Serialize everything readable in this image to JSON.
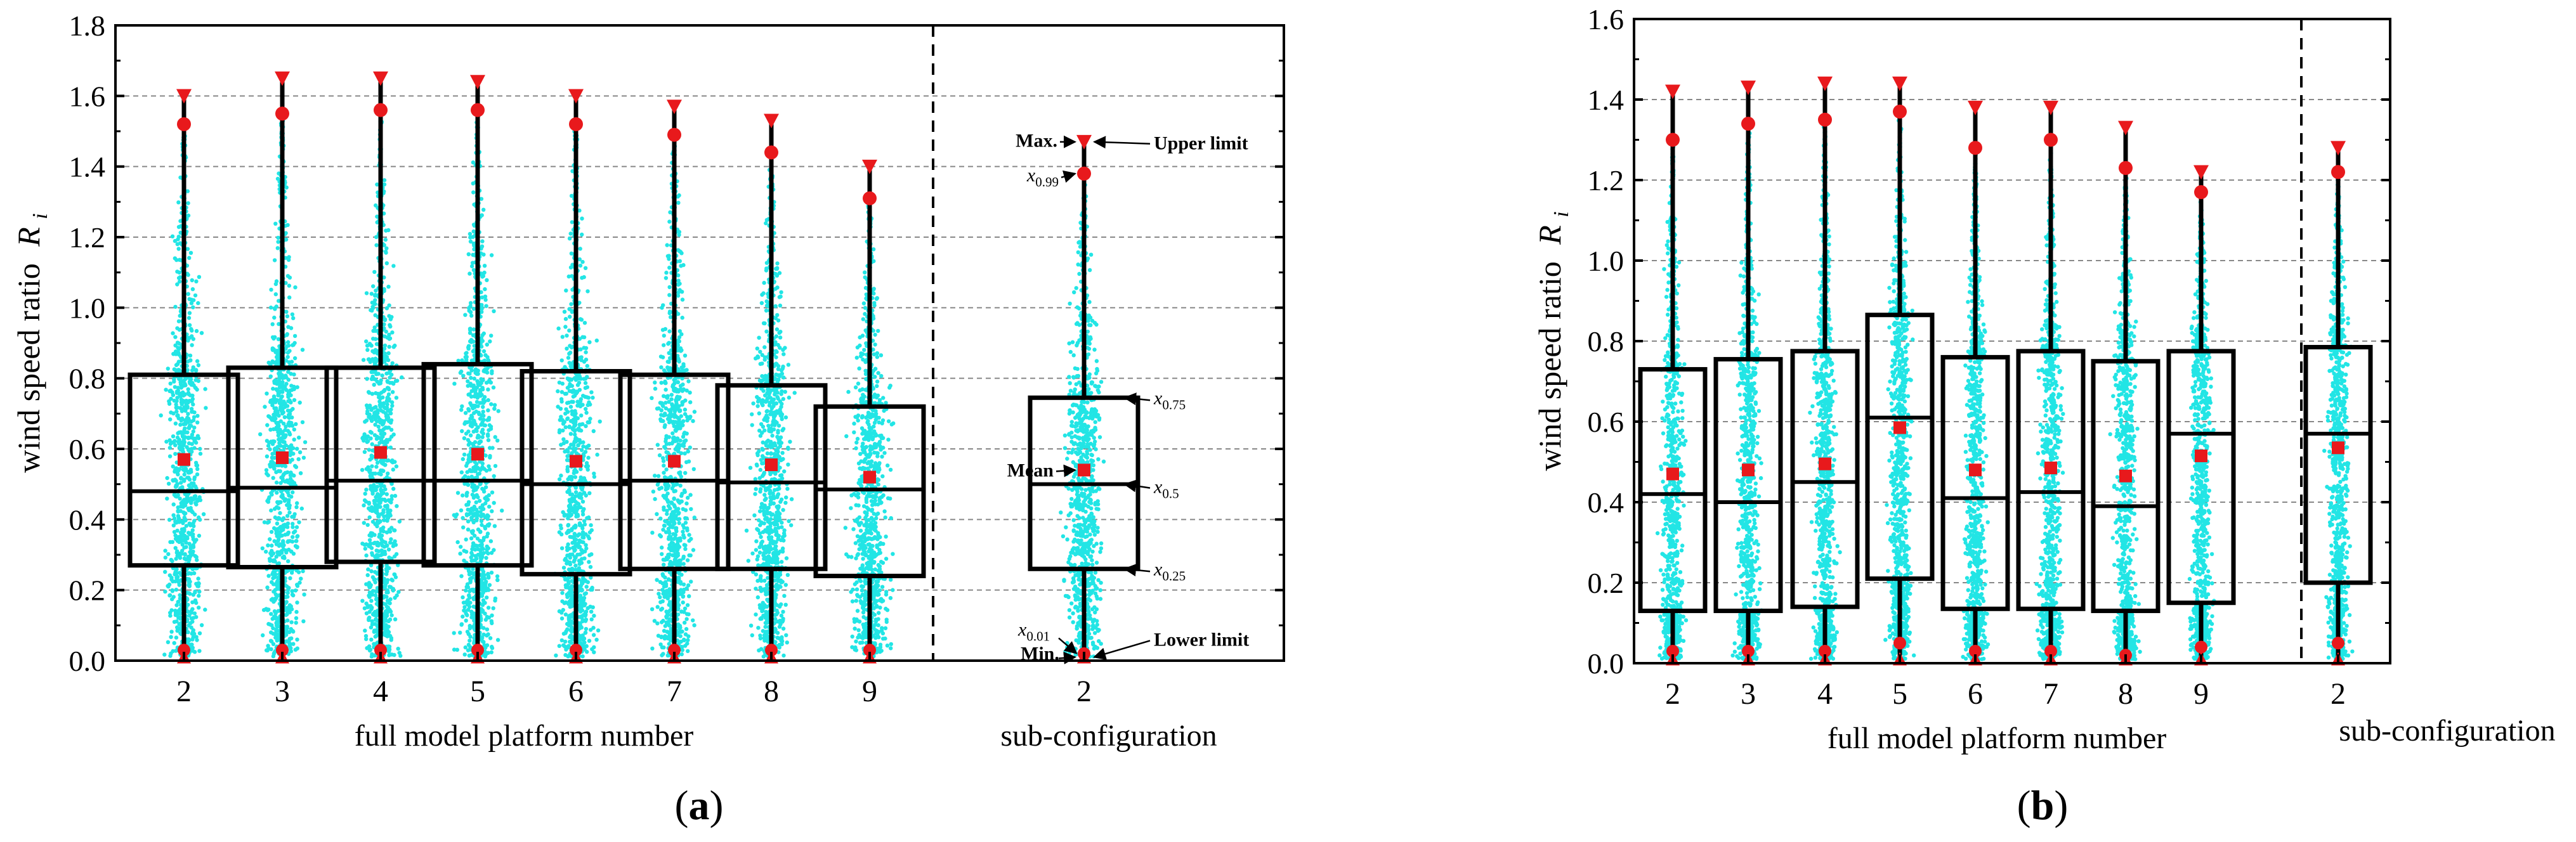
{
  "chart_data": [
    {
      "panel_label": "(a)",
      "panel_letter": "a",
      "type": "box",
      "ylabel": "wind speed ratio",
      "ylabel_symbol": "R",
      "ylabel_subscript": "i",
      "xlabel": "full model platform number",
      "xlabel_sub": "sub-configuration",
      "ylim": [
        0,
        1.8
      ],
      "yticks": [
        "0.0",
        "0.2",
        "0.4",
        "0.6",
        "0.8",
        "1.0",
        "1.2",
        "1.4",
        "1.6",
        "1.8"
      ],
      "grid": true,
      "boxes": [
        {
          "label": "2",
          "group": "full",
          "q1": 0.27,
          "median": 0.48,
          "q3": 0.81,
          "mean": 0.57,
          "p01": 0.03,
          "p99": 1.52,
          "min": 0.01,
          "max": 1.6
        },
        {
          "label": "3",
          "group": "full",
          "q1": 0.265,
          "median": 0.49,
          "q3": 0.83,
          "mean": 0.575,
          "p01": 0.03,
          "p99": 1.55,
          "min": 0.01,
          "max": 1.65
        },
        {
          "label": "4",
          "group": "full",
          "q1": 0.28,
          "median": 0.51,
          "q3": 0.83,
          "mean": 0.59,
          "p01": 0.03,
          "p99": 1.56,
          "min": 0.01,
          "max": 1.65
        },
        {
          "label": "5",
          "group": "full",
          "q1": 0.27,
          "median": 0.51,
          "q3": 0.84,
          "mean": 0.585,
          "p01": 0.03,
          "p99": 1.56,
          "min": 0.01,
          "max": 1.64
        },
        {
          "label": "6",
          "group": "full",
          "q1": 0.245,
          "median": 0.5,
          "q3": 0.82,
          "mean": 0.565,
          "p01": 0.03,
          "p99": 1.52,
          "min": 0.01,
          "max": 1.6
        },
        {
          "label": "7",
          "group": "full",
          "q1": 0.26,
          "median": 0.51,
          "q3": 0.81,
          "mean": 0.565,
          "p01": 0.03,
          "p99": 1.49,
          "min": 0.01,
          "max": 1.57
        },
        {
          "label": "8",
          "group": "full",
          "q1": 0.26,
          "median": 0.505,
          "q3": 0.78,
          "mean": 0.555,
          "p01": 0.03,
          "p99": 1.44,
          "min": 0.01,
          "max": 1.53
        },
        {
          "label": "9",
          "group": "full",
          "q1": 0.24,
          "median": 0.485,
          "q3": 0.72,
          "mean": 0.52,
          "p01": 0.03,
          "p99": 1.31,
          "min": 0.01,
          "max": 1.4
        },
        {
          "label": "2",
          "group": "sub",
          "q1": 0.26,
          "median": 0.5,
          "q3": 0.745,
          "mean": 0.54,
          "p01": 0.02,
          "p99": 1.38,
          "min": 0.01,
          "max": 1.47
        }
      ],
      "legend_annotations": {
        "max": "Max.",
        "upper": "Upper limit",
        "p99": "x0.99",
        "p75": "x0.75",
        "mean": "Mean",
        "median": "x0.5",
        "p25": "x0.25",
        "p01": "x0.01",
        "min": "Min.",
        "lower": "Lower limit"
      }
    },
    {
      "panel_label": "(b)",
      "panel_letter": "b",
      "type": "box",
      "ylabel": "wind speed ratio",
      "ylabel_symbol": "R",
      "ylabel_subscript": "i",
      "xlabel": "full model platform number",
      "xlabel_sub": "sub-configuration",
      "ylim": [
        0,
        1.6
      ],
      "yticks": [
        "0.0",
        "0.2",
        "0.4",
        "0.6",
        "0.8",
        "1.0",
        "1.2",
        "1.4",
        "1.6"
      ],
      "grid": true,
      "boxes": [
        {
          "label": "2",
          "group": "full",
          "q1": 0.13,
          "median": 0.42,
          "q3": 0.73,
          "mean": 0.47,
          "p01": 0.03,
          "p99": 1.3,
          "min": 0.01,
          "max": 1.42
        },
        {
          "label": "3",
          "group": "full",
          "q1": 0.13,
          "median": 0.4,
          "q3": 0.755,
          "mean": 0.48,
          "p01": 0.03,
          "p99": 1.34,
          "min": 0.01,
          "max": 1.43
        },
        {
          "label": "4",
          "group": "full",
          "q1": 0.14,
          "median": 0.45,
          "q3": 0.775,
          "mean": 0.495,
          "p01": 0.03,
          "p99": 1.35,
          "min": 0.01,
          "max": 1.44
        },
        {
          "label": "5",
          "group": "full",
          "q1": 0.21,
          "median": 0.61,
          "q3": 0.865,
          "mean": 0.585,
          "p01": 0.05,
          "p99": 1.37,
          "min": 0.01,
          "max": 1.44
        },
        {
          "label": "6",
          "group": "full",
          "q1": 0.135,
          "median": 0.41,
          "q3": 0.76,
          "mean": 0.48,
          "p01": 0.03,
          "p99": 1.28,
          "min": 0.01,
          "max": 1.38
        },
        {
          "label": "7",
          "group": "full",
          "q1": 0.135,
          "median": 0.425,
          "q3": 0.775,
          "mean": 0.485,
          "p01": 0.03,
          "p99": 1.3,
          "min": 0.01,
          "max": 1.38
        },
        {
          "label": "8",
          "group": "full",
          "q1": 0.13,
          "median": 0.39,
          "q3": 0.75,
          "mean": 0.465,
          "p01": 0.02,
          "p99": 1.23,
          "min": 0.01,
          "max": 1.33
        },
        {
          "label": "9",
          "group": "full",
          "q1": 0.15,
          "median": 0.57,
          "q3": 0.775,
          "mean": 0.515,
          "p01": 0.04,
          "p99": 1.17,
          "min": 0.01,
          "max": 1.22
        },
        {
          "label": "2",
          "group": "sub",
          "q1": 0.2,
          "median": 0.57,
          "q3": 0.785,
          "mean": 0.535,
          "p01": 0.05,
          "p99": 1.22,
          "min": 0.01,
          "max": 1.28
        }
      ]
    }
  ],
  "colors": {
    "scatter": "#22e5e5",
    "marker": "#e8191c",
    "axis": "#000000",
    "grid": "#888888"
  }
}
